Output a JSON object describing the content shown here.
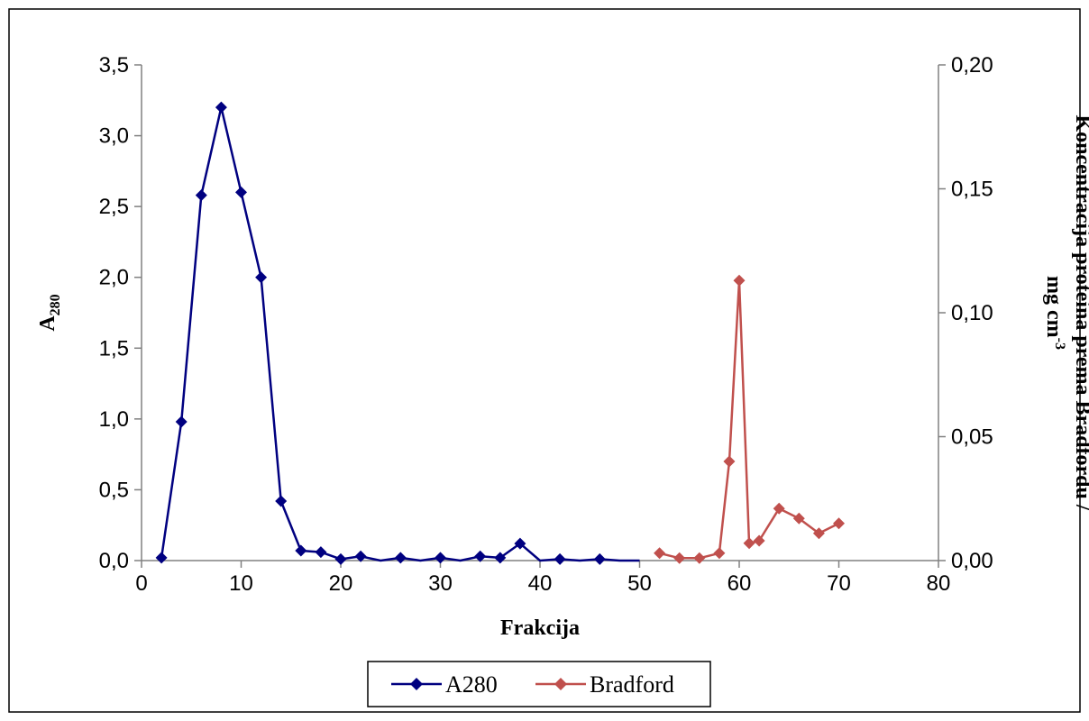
{
  "chart_data": {
    "type": "line",
    "xlabel": "Frakcija",
    "ylabel_left": {
      "main": "A",
      "sub": "280"
    },
    "ylabel_right": {
      "line1": "Koncentracija proteina prema Bradfordu /",
      "line2_main": "mg cm",
      "line2_sup": "-3"
    },
    "xlim": [
      0,
      80
    ],
    "ylim_left": [
      0,
      3.5
    ],
    "ylim_right": [
      0,
      0.2
    ],
    "x_ticks": [
      "0",
      "10",
      "20",
      "30",
      "40",
      "50",
      "60",
      "70",
      "80"
    ],
    "y_left_ticks": [
      "0,0",
      "0,5",
      "1,0",
      "1,5",
      "2,0",
      "2,5",
      "3,0",
      "3,5"
    ],
    "y_right_ticks": [
      "0,00",
      "0,05",
      "0,10",
      "0,15",
      "0,20"
    ],
    "grid": false,
    "legend_position": "bottom",
    "series": [
      {
        "name": "A280",
        "axis": "left",
        "color": "#000080",
        "marker": "diamond",
        "points": [
          [
            2,
            0.02
          ],
          [
            4,
            0.98
          ],
          [
            6,
            2.58
          ],
          [
            8,
            3.2
          ],
          [
            10,
            2.6
          ],
          [
            12,
            2.0
          ],
          [
            14,
            0.42
          ],
          [
            16,
            0.07
          ],
          [
            18,
            0.06
          ],
          [
            20,
            0.01
          ],
          [
            22,
            0.03
          ],
          [
            24,
            0.0
          ],
          [
            26,
            0.02
          ],
          [
            28,
            0.0
          ],
          [
            30,
            0.02
          ],
          [
            32,
            0.0
          ],
          [
            34,
            0.03
          ],
          [
            36,
            0.02
          ],
          [
            38,
            0.12
          ],
          [
            40,
            0.0
          ],
          [
            42,
            0.01
          ],
          [
            44,
            0.0
          ],
          [
            46,
            0.01
          ],
          [
            48,
            0.0
          ],
          [
            50,
            0.0
          ]
        ],
        "marker_x": [
          2,
          4,
          6,
          8,
          10,
          12,
          14,
          16,
          18,
          20,
          22,
          26,
          30,
          34,
          36,
          38,
          42,
          46
        ]
      },
      {
        "name": "Bradford",
        "axis": "right",
        "color": "#C0504D",
        "marker": "diamond",
        "points": [
          [
            52,
            0.003
          ],
          [
            54,
            0.001
          ],
          [
            56,
            0.001
          ],
          [
            58,
            0.003
          ],
          [
            59,
            0.04
          ],
          [
            60,
            0.113
          ],
          [
            61,
            0.007
          ],
          [
            62,
            0.008
          ],
          [
            64,
            0.021
          ],
          [
            66,
            0.017
          ],
          [
            68,
            0.011
          ],
          [
            70,
            0.015
          ]
        ],
        "marker_x": [
          52,
          54,
          56,
          58,
          59,
          60,
          61,
          62,
          64,
          66,
          68,
          70
        ]
      }
    ]
  }
}
